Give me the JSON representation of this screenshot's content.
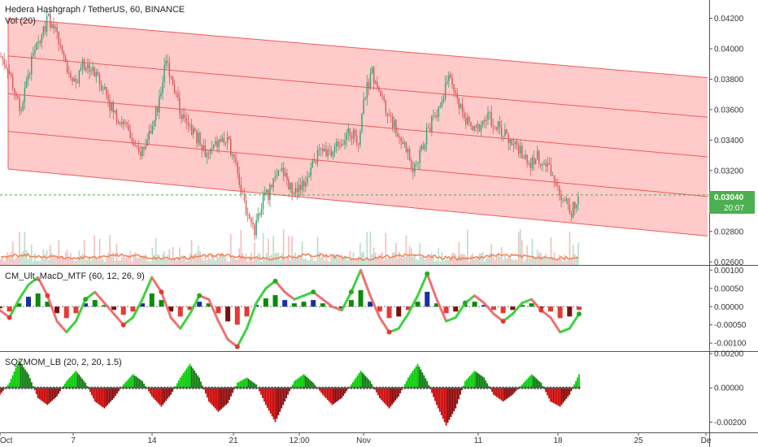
{
  "header": {
    "symbol_title": "Hedera Hashgraph / TetherUS, 60, BINANCE",
    "volume_label": "Vol (20)"
  },
  "colors": {
    "channel_fill": "#ffb3b3",
    "channel_line": "#f05a5a",
    "candle_up": "#3aa272",
    "candle_down": "#d95b5b",
    "volume_ma": "#f0855a",
    "macd_up": "#3fd13f",
    "macd_down": "#e53935",
    "macd_blue": "#1a2fa0",
    "sqz_up": "#00cc00",
    "sqz_down": "#cc0000",
    "price_tag_bg": "#4caf50"
  },
  "chart_data": [
    {
      "type": "candlestick",
      "title": "Hedera Hashgraph / TetherUS, 60, BINANCE",
      "y_ticks": [
        "0.04200",
        "0.04000",
        "0.03800",
        "0.03600",
        "0.03400",
        "0.03200",
        "0.03000",
        "0.02800",
        "0.02600"
      ],
      "ylim": [
        0.0258,
        0.0432
      ],
      "last_price": "0.03040",
      "countdown": "20:07",
      "close_series": [
        0.0395,
        0.0388,
        0.0372,
        0.036,
        0.0385,
        0.0398,
        0.0412,
        0.042,
        0.041,
        0.0395,
        0.0385,
        0.0378,
        0.039,
        0.0388,
        0.038,
        0.0375,
        0.0362,
        0.0355,
        0.035,
        0.034,
        0.033,
        0.0338,
        0.0348,
        0.0365,
        0.0392,
        0.038,
        0.036,
        0.035,
        0.0345,
        0.034,
        0.033,
        0.0335,
        0.034,
        0.0338,
        0.033,
        0.0305,
        0.029,
        0.028,
        0.03,
        0.0305,
        0.0315,
        0.032,
        0.031,
        0.0305,
        0.0312,
        0.032,
        0.033,
        0.0335,
        0.033,
        0.0338,
        0.0342,
        0.0345,
        0.034,
        0.037,
        0.0385,
        0.0372,
        0.0362,
        0.0352,
        0.0342,
        0.0335,
        0.032,
        0.033,
        0.0345,
        0.0355,
        0.0365,
        0.038,
        0.0372,
        0.036,
        0.035,
        0.0345,
        0.0352,
        0.0355,
        0.035,
        0.0345,
        0.0338,
        0.0335,
        0.033,
        0.0325,
        0.033,
        0.0325,
        0.032,
        0.031,
        0.03,
        0.0292,
        0.0304
      ],
      "channel": {
        "upper_start": 0.042,
        "upper_end": 0.0381,
        "lower_start": 0.0321,
        "lower_end": 0.0277
      }
    },
    {
      "type": "histogram",
      "title": "CM_Ult_MacD_MTF (60, 12, 26, 9)",
      "y_ticks": [
        "0.00100",
        "0.00050",
        "0.00000",
        "-0.00050",
        "-0.00100"
      ],
      "ylim": [
        -0.00122,
        0.00112
      ],
      "macd_line": [
        -0.0001,
        -0.0003,
        0.0002,
        0.0006,
        0.0008,
        0.0003,
        -0.0004,
        -0.0007,
        -0.0004,
        0.0002,
        0.0004,
        0.0001,
        -0.0002,
        -0.0005,
        -0.0003,
        0.0002,
        0.0008,
        0.0004,
        -0.0003,
        -0.0006,
        -0.0002,
        0.0003,
        0.0002,
        -0.0004,
        -0.0009,
        -0.0011,
        -0.0006,
        0.0001,
        0.0005,
        0.0007,
        0.0004,
        0.0002,
        0.0003,
        0.0004,
        0.0002,
        0.0,
        -0.0001,
        0.0004,
        0.001,
        0.0003,
        -0.0003,
        -0.0007,
        -0.0006,
        -0.0002,
        0.0003,
        0.0009,
        0.0002,
        -0.0004,
        -0.0003,
        0.0001,
        0.0003,
        0.0001,
        -0.0002,
        -0.0004,
        -0.0002,
        0.0001,
        0.0002,
        -0.0001,
        -0.0003,
        -0.0007,
        -0.0006,
        -0.0002
      ]
    },
    {
      "type": "histogram",
      "title": "SQZMOM_LB (20, 2, 20, 1.5)",
      "y_ticks": [
        "0.00200",
        "0.00000",
        "-0.00200"
      ],
      "ylim": [
        -0.0026,
        0.0021
      ],
      "momentum": [
        -0.0004,
        0.0003,
        0.0016,
        0.0008,
        -0.0006,
        -0.001,
        -0.0005,
        0.0004,
        0.001,
        0.0003,
        -0.0008,
        -0.0012,
        -0.0006,
        0.0002,
        0.0008,
        0.0004,
        -0.0005,
        -0.0011,
        -0.0004,
        0.0006,
        0.0014,
        0.0006,
        -0.0008,
        -0.0014,
        -0.0009,
        0.0003,
        0.0006,
        0.0002,
        -0.001,
        -0.002,
        -0.0008,
        0.0004,
        0.0008,
        0.0003,
        -0.0004,
        -0.001,
        -0.0006,
        0.0002,
        0.001,
        0.0004,
        -0.0006,
        -0.0012,
        -0.0005,
        0.0006,
        0.0014,
        0.0004,
        -0.001,
        -0.0022,
        -0.0012,
        0.0004,
        0.001,
        0.0006,
        -0.0004,
        -0.0008,
        -0.0004,
        0.0002,
        0.0008,
        0.0003,
        -0.0008,
        -0.0011,
        -0.0004,
        0.0008
      ]
    }
  ],
  "x_axis": {
    "ticks": [
      "Oct",
      "7",
      "14",
      "21",
      "12:00",
      "Nov",
      "11",
      "18",
      "25",
      "De"
    ]
  }
}
